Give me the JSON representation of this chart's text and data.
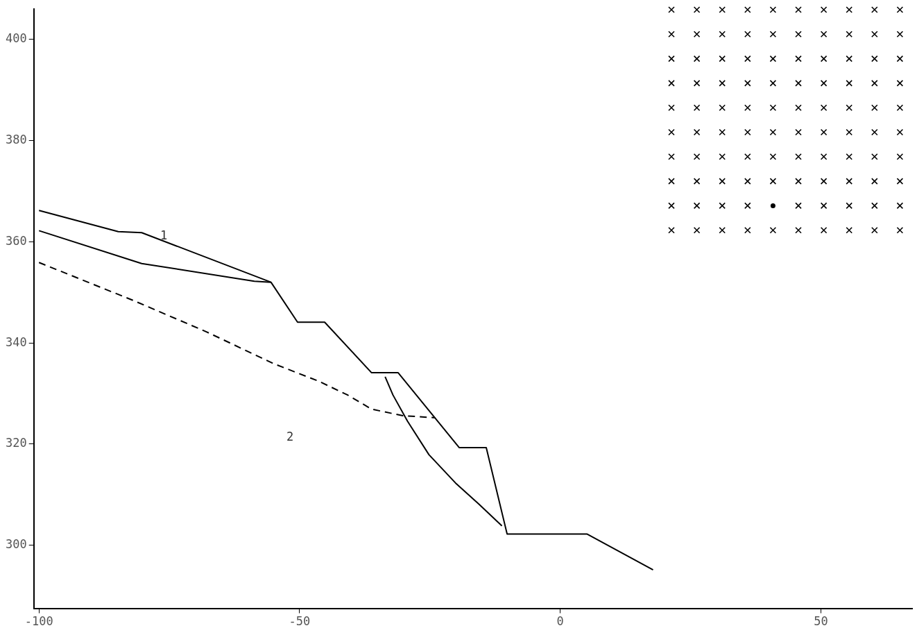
{
  "chart_data": {
    "type": "line",
    "xlim": [
      -101,
      67.5
    ],
    "ylim": [
      287.5,
      406
    ],
    "xticks": [
      -100,
      -50,
      0,
      50
    ],
    "yticks": [
      300,
      320,
      340,
      360,
      380,
      400
    ],
    "grid": false,
    "legend": false,
    "marker": "none",
    "series": [
      {
        "color": "#000000",
        "line_style": "solid",
        "x": [
          -100,
          -84.8,
          -80.3,
          -55.5,
          -50.4,
          -45.2,
          -36.2,
          -31.1,
          -19.4,
          -14.2,
          -10.2,
          5.1,
          17.8
        ],
        "values": [
          366.2,
          362.0,
          361.8,
          352.0,
          344.1,
          344.1,
          334.1,
          334.1,
          319.3,
          319.3,
          302.2,
          302.2,
          295.1
        ]
      },
      {
        "color": "#000000",
        "line_style": "solid",
        "x": [
          -100,
          -80.3,
          -58.7,
          -55.5
        ],
        "values": [
          362.2,
          355.7,
          352.2,
          352.0
        ]
      },
      {
        "color": "#000000",
        "line_style": "solid",
        "x": [
          -33.6,
          -32.1,
          -29.3,
          -25.2,
          -20.1,
          -15.6,
          -11.2
        ],
        "values": [
          333.3,
          329.7,
          324.5,
          317.9,
          312.3,
          308.1,
          303.8
        ]
      },
      {
        "color": "#000000",
        "line_style": "dashed",
        "x": [
          -100,
          -81.7,
          -67.9,
          -55.0,
          -46.3,
          -40.8,
          -36.2,
          -30.2,
          -24.0
        ],
        "values": [
          355.9,
          348.3,
          342.2,
          335.9,
          332.4,
          329.7,
          326.9,
          325.6,
          325.2
        ]
      }
    ],
    "annotations": [
      "1",
      "2"
    ]
  }
}
